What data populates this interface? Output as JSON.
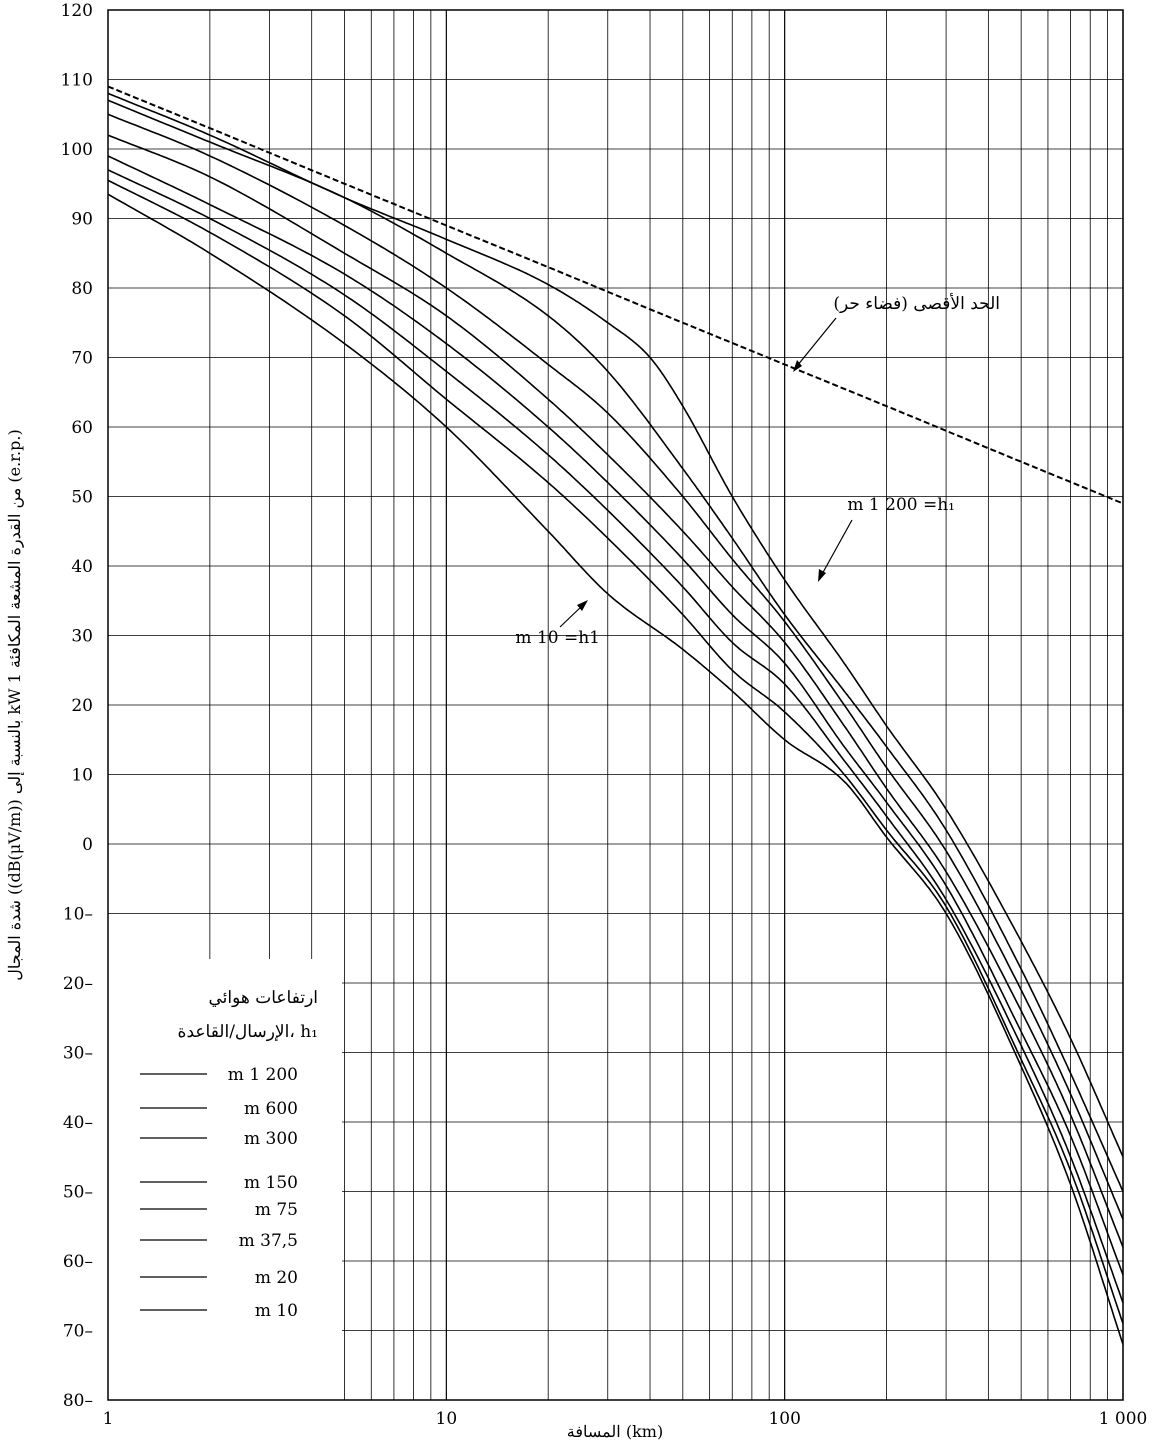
{
  "chart_data": {
    "type": "line",
    "xscale": "log",
    "xlim": [
      1,
      1000
    ],
    "ylim": [
      -80,
      120
    ],
    "x_ticks": [
      "1",
      "10",
      "100",
      "1 000"
    ],
    "y_ticks": [
      "120",
      "110",
      "100",
      "90",
      "80",
      "70",
      "60",
      "50",
      "40",
      "30",
      "20",
      "10",
      "0",
      "10–",
      "20–",
      "30–",
      "40–",
      "50–",
      "60–",
      "70–",
      "80–"
    ],
    "xlabel": "المسافة (km)",
    "ylabel": "شدة المجال ((dB(μV/m)) بالنسبة إلى kW 1 من القدرة المشعة المكافئة (e.r.p.)",
    "grid": true,
    "annotations": {
      "free_space": "الحد الأقصى (فضاء حر)",
      "h1200": "m 1 200 =h₁",
      "h10": "m 10 =h1"
    },
    "legend": {
      "title_line1": "ارتفاعات هوائي",
      "title_line2": "الإرسال/القاعدة، h₁",
      "placement": "bottom-left",
      "entries": [
        "m 1 200",
        "m 600",
        "m 300",
        "m 150",
        "m 75",
        "m 37,5",
        "m 20",
        "m 10"
      ]
    },
    "series": [
      {
        "name": "الحد الأقصى (فضاء حر)",
        "dashed": true,
        "x": [
          1,
          2,
          5,
          10,
          20,
          50,
          100,
          200,
          500,
          1000
        ],
        "y": [
          109,
          103,
          95,
          89,
          83,
          75,
          69,
          63,
          55,
          49
        ]
      },
      {
        "name": "m 1 200",
        "x": [
          1,
          2,
          5,
          10,
          20,
          30,
          40,
          50,
          70,
          100,
          150,
          200,
          300,
          500,
          700,
          1000
        ],
        "y": [
          108,
          102,
          93,
          87,
          80.5,
          75,
          70,
          63,
          50,
          38,
          26,
          17,
          5,
          -14,
          -28,
          -45
        ]
      },
      {
        "name": "m 600",
        "x": [
          1,
          2,
          5,
          10,
          20,
          30,
          50,
          70,
          100,
          150,
          200,
          300,
          500,
          700,
          1000
        ],
        "y": [
          107,
          101,
          93,
          85,
          76,
          68,
          54,
          44,
          33,
          22,
          14,
          2,
          -18,
          -33,
          -50
        ]
      },
      {
        "name": "m 300",
        "x": [
          1,
          2,
          5,
          10,
          20,
          30,
          50,
          70,
          100,
          150,
          200,
          300,
          500,
          700,
          1000
        ],
        "y": [
          105,
          99,
          89,
          80,
          69,
          62,
          50,
          41,
          32,
          20,
          11,
          -1,
          -21,
          -36,
          -54
        ]
      },
      {
        "name": "m 150",
        "x": [
          1,
          2,
          5,
          10,
          20,
          30,
          50,
          70,
          100,
          150,
          200,
          300,
          500,
          700,
          1000
        ],
        "y": [
          102,
          96,
          85,
          76,
          64,
          56,
          45,
          37,
          29,
          17,
          8,
          -4,
          -24,
          -39,
          -58
        ]
      },
      {
        "name": "m 75",
        "x": [
          1,
          2,
          5,
          10,
          20,
          30,
          50,
          70,
          100,
          150,
          200,
          300,
          500,
          700,
          1000
        ],
        "y": [
          99,
          92,
          82,
          72,
          60,
          52,
          41,
          33,
          26,
          14,
          6,
          -6,
          -27,
          -42,
          -62
        ]
      },
      {
        "name": "m 37,5",
        "x": [
          1,
          2,
          5,
          10,
          20,
          30,
          50,
          70,
          100,
          150,
          200,
          300,
          500,
          700,
          1000
        ],
        "y": [
          97,
          90,
          79,
          68,
          56,
          48,
          37,
          29,
          23,
          12,
          4,
          -8,
          -29,
          -45,
          -66
        ]
      },
      {
        "name": "m 20",
        "x": [
          1,
          2,
          5,
          10,
          20,
          30,
          50,
          70,
          100,
          150,
          200,
          300,
          500,
          700,
          1000
        ],
        "y": [
          95.5,
          88,
          76,
          64,
          52,
          44,
          33,
          25,
          19,
          10,
          2,
          -9,
          -31,
          -47,
          -69
        ]
      },
      {
        "name": "m 10",
        "x": [
          1,
          2,
          5,
          10,
          20,
          30,
          50,
          70,
          100,
          150,
          200,
          300,
          500,
          700,
          1000
        ],
        "y": [
          93.5,
          85,
          72,
          60,
          45,
          36,
          28,
          22,
          15,
          9,
          1,
          -10,
          -32,
          -49,
          -72
        ]
      }
    ]
  }
}
